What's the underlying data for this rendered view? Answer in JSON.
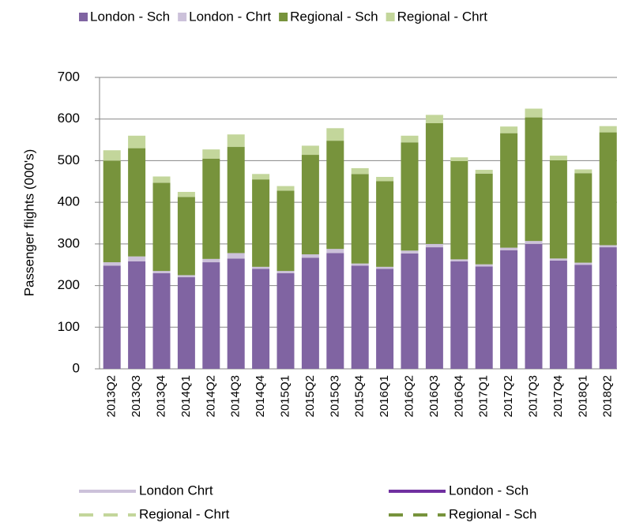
{
  "chart_data": {
    "type": "stacked_bar",
    "y_axis_label": "Passenger flights (000's)",
    "categories": [
      "2013Q2",
      "2013Q3",
      "2013Q4",
      "2014Q1",
      "2014Q2",
      "2014Q3",
      "2014Q4",
      "2015Q1",
      "2015Q2",
      "2015Q3",
      "2015Q4",
      "2016Q1",
      "2016Q2",
      "2016Q3",
      "2016Q4",
      "2017Q1",
      "2017Q2",
      "2017Q3",
      "2017Q4",
      "2018Q1",
      "2018Q2"
    ],
    "series": [
      {
        "name": "London - Sch",
        "color": "#8064a2",
        "values": [
          248,
          258,
          230,
          220,
          256,
          265,
          240,
          230,
          267,
          278,
          248,
          240,
          277,
          292,
          258,
          246,
          285,
          300,
          260,
          250,
          292
        ]
      },
      {
        "name": "London - Chrt",
        "color": "#ccc1da",
        "values": [
          8,
          12,
          5,
          5,
          8,
          13,
          5,
          5,
          8,
          10,
          5,
          5,
          7,
          8,
          5,
          5,
          6,
          7,
          5,
          5,
          5
        ]
      },
      {
        "name": "Regional - Sch",
        "color": "#77933c",
        "values": [
          244,
          260,
          212,
          188,
          241,
          255,
          210,
          193,
          239,
          260,
          215,
          206,
          260,
          290,
          236,
          218,
          275,
          297,
          236,
          215,
          271
        ]
      },
      {
        "name": "Regional - Chrt",
        "color": "#c3d69b",
        "values": [
          25,
          30,
          15,
          12,
          22,
          30,
          13,
          11,
          22,
          30,
          14,
          10,
          16,
          20,
          9,
          9,
          16,
          21,
          11,
          9,
          15
        ]
      }
    ],
    "ylim": [
      0,
      700
    ],
    "yticks": [
      0,
      100,
      200,
      300,
      400,
      500,
      600,
      700
    ],
    "grid": true,
    "line_legend": [
      {
        "name": "London Chrt",
        "color": "#ccc1da",
        "dashed": false
      },
      {
        "name": "London - Sch",
        "color": "#7030a0",
        "dashed": false
      },
      {
        "name": "Regional - Chrt",
        "color": "#c3d69b",
        "dashed": true
      },
      {
        "name": "Regional - Sch",
        "color": "#77933c",
        "dashed": true
      }
    ]
  }
}
